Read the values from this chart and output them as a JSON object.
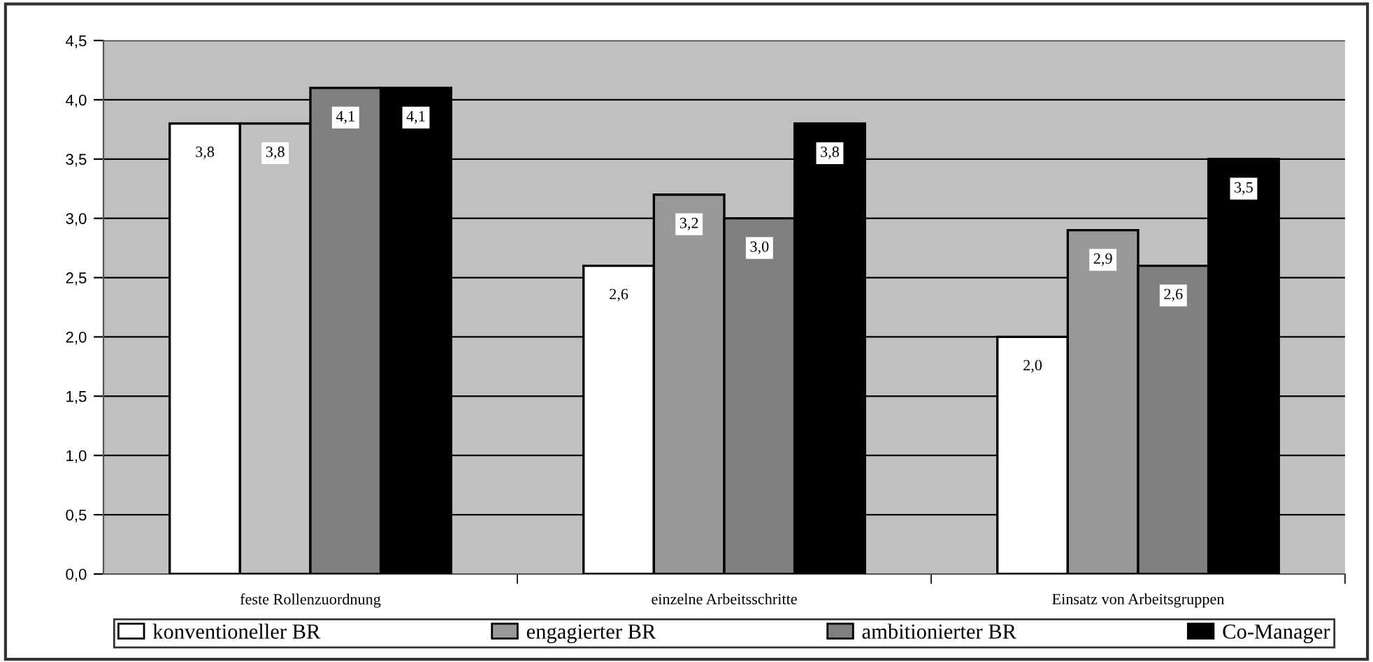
{
  "chart_data": {
    "type": "bar",
    "categories": [
      "feste Rollenzuordnung",
      "einzelne Arbeitsschritte",
      "Einsatz von Arbeitsgruppen"
    ],
    "series": [
      {
        "name": "konventioneller BR",
        "color": "#ffffff",
        "values": [
          3.8,
          2.6,
          2.0
        ],
        "value_labels": [
          "3,8",
          "2,6",
          "2,0"
        ]
      },
      {
        "name": "engagierter BR",
        "color": "#999999",
        "colors": [
          "#c0c0c0",
          "#999999",
          "#999999"
        ],
        "values": [
          3.8,
          3.2,
          2.9
        ],
        "value_labels": [
          "3,8",
          "3,2",
          "2,9"
        ]
      },
      {
        "name": "ambitionierter BR",
        "color": "#808080",
        "values": [
          4.1,
          3.0,
          2.6
        ],
        "value_labels": [
          "4,1",
          "3,0",
          "2,6"
        ]
      },
      {
        "name": "Co-Manager",
        "color": "#000000",
        "values": [
          4.1,
          3.8,
          3.5
        ],
        "value_labels": [
          "4,1",
          "3,8",
          "3,5"
        ]
      }
    ],
    "ylim": [
      0,
      4.5
    ],
    "yticks": [
      {
        "value": 0,
        "label": "0,0"
      },
      {
        "value": 0.5,
        "label": "0,5"
      },
      {
        "value": 1,
        "label": "1,0"
      },
      {
        "value": 1.5,
        "label": "1,5"
      },
      {
        "value": 2,
        "label": "2,0"
      },
      {
        "value": 2.5,
        "label": "2,5"
      },
      {
        "value": 3,
        "label": "3,0"
      },
      {
        "value": 3.5,
        "label": "3,5"
      },
      {
        "value": 4,
        "label": "4,0"
      },
      {
        "value": 4.5,
        "label": "4,5"
      }
    ],
    "grid": "y",
    "legend": "bottom"
  }
}
